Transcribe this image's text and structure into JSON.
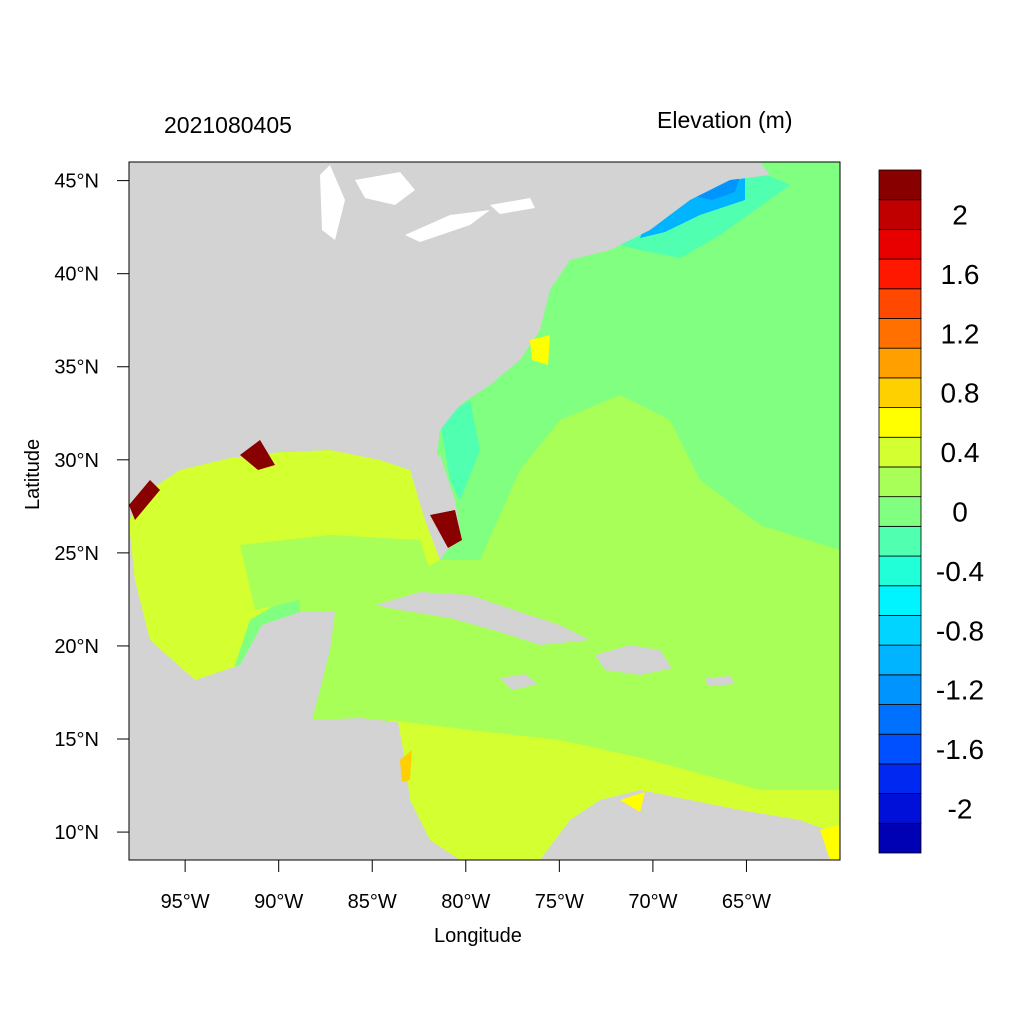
{
  "header": {
    "date_label": "2021080405",
    "variable_label": "Elevation (m)"
  },
  "axes": {
    "xlabel": "Longitude",
    "ylabel": "Latitude",
    "lon_range": [
      -98,
      -60
    ],
    "lat_range": [
      8.5,
      46
    ],
    "x_ticks": [
      {
        "value": -95,
        "label": "95°W"
      },
      {
        "value": -90,
        "label": "90°W"
      },
      {
        "value": -85,
        "label": "85°W"
      },
      {
        "value": -80,
        "label": "80°W"
      },
      {
        "value": -75,
        "label": "75°W"
      },
      {
        "value": -70,
        "label": "70°W"
      },
      {
        "value": -65,
        "label": "65°W"
      }
    ],
    "y_ticks": [
      {
        "value": 45,
        "label": "45°N"
      },
      {
        "value": 40,
        "label": "40°N"
      },
      {
        "value": 35,
        "label": "35°N"
      },
      {
        "value": 30,
        "label": "30°N"
      },
      {
        "value": 25,
        "label": "25°N"
      },
      {
        "value": 20,
        "label": "20°N"
      },
      {
        "value": 15,
        "label": "15°N"
      },
      {
        "value": 10,
        "label": "10°N"
      }
    ]
  },
  "colorbar": {
    "colors": [
      "#0000b4",
      "#0010d8",
      "#0028f0",
      "#0050ff",
      "#0070ff",
      "#0094ff",
      "#00b4ff",
      "#00d4ff",
      "#00f4ff",
      "#20ffd8",
      "#50ffb0",
      "#80ff80",
      "#a8ff58",
      "#d4ff30",
      "#ffff00",
      "#ffd000",
      "#ffa000",
      "#ff7000",
      "#ff4800",
      "#ff1800",
      "#e80000",
      "#c00000",
      "#880000"
    ],
    "labels": [
      {
        "value": 2,
        "label": "2"
      },
      {
        "value": 1.6,
        "label": "1.6"
      },
      {
        "value": 1.2,
        "label": "1.2"
      },
      {
        "value": 0.8,
        "label": "0.8"
      },
      {
        "value": 0.4,
        "label": "0.4"
      },
      {
        "value": 0,
        "label": "0"
      },
      {
        "value": -0.4,
        "label": "-0.4"
      },
      {
        "value": -0.8,
        "label": "-0.8"
      },
      {
        "value": -1.2,
        "label": "-1.2"
      },
      {
        "value": -1.6,
        "label": "-1.6"
      },
      {
        "value": -2,
        "label": "-2"
      }
    ]
  },
  "colors": {
    "land": "#d3d3d3",
    "lakes": "#ffffff",
    "ocean_base": "#a8ff58"
  }
}
